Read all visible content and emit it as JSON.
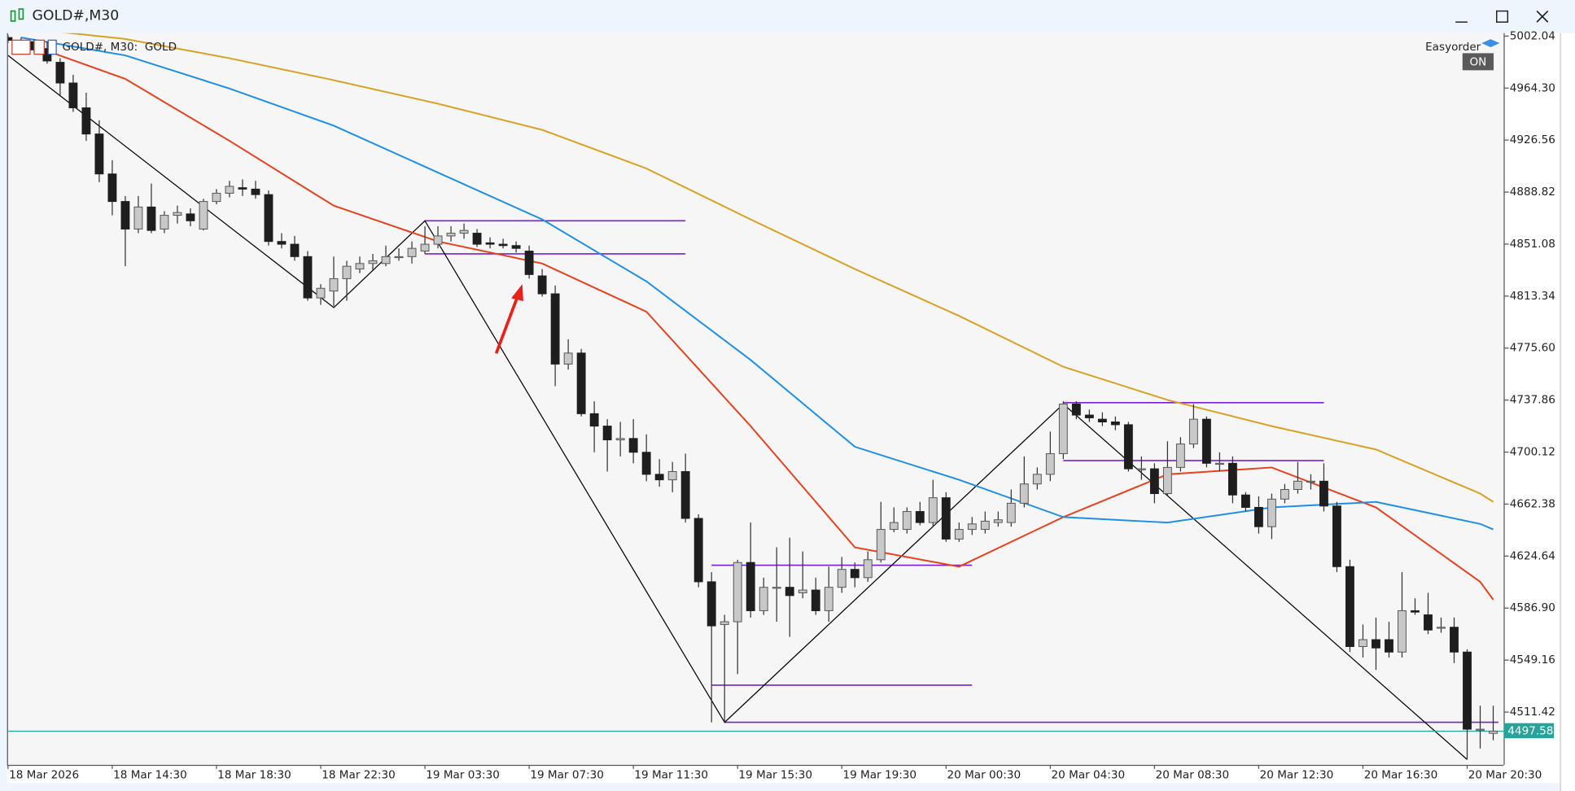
{
  "window": {
    "title": "GOLD#,M30"
  },
  "expert": {
    "name": "Easyorder",
    "state": "ON"
  },
  "chart_data": {
    "type": "candlestick",
    "title": "GOLD#, M30:  GOLD",
    "categories": [
      "18 Mar 2026",
      null,
      null,
      null,
      null,
      null,
      null,
      null,
      "18 Mar 14:30",
      null,
      null,
      null,
      null,
      null,
      null,
      null,
      "18 Mar 18:30",
      null,
      null,
      null,
      null,
      null,
      null,
      null,
      "18 Mar 22:30",
      null,
      null,
      null,
      null,
      null,
      null,
      null,
      "19 Mar 03:30",
      null,
      null,
      null,
      null,
      null,
      null,
      null,
      "19 Mar 07:30",
      null,
      null,
      null,
      null,
      null,
      null,
      null,
      "19 Mar 11:30",
      null,
      null,
      null,
      null,
      null,
      null,
      null,
      "19 Mar 15:30",
      null,
      null,
      null,
      null,
      null,
      null,
      null,
      "19 Mar 19:30",
      null,
      null,
      null,
      null,
      null,
      null,
      null,
      "20 Mar 00:30",
      null,
      null,
      null,
      null,
      null,
      null,
      null,
      "20 Mar 04:30",
      null,
      null,
      null,
      null,
      null,
      null,
      null,
      "20 Mar 08:30",
      null,
      null,
      null,
      null,
      null,
      null,
      null,
      "20 Mar 12:30",
      null,
      null,
      null,
      null,
      null,
      null,
      null,
      "20 Mar 16:30",
      null,
      null,
      null,
      null,
      null,
      null,
      null,
      "20 Mar 20:30",
      null,
      null
    ],
    "ohlc": [
      [
        5001,
        5003,
        4997,
        4999
      ],
      [
        4999,
        5001,
        4993,
        4995
      ],
      [
        4998,
        5000,
        4990,
        4992
      ],
      [
        4993,
        4998,
        4982,
        4984
      ],
      [
        4983,
        4986,
        4959,
        4968
      ],
      [
        4968,
        4974,
        4947,
        4950
      ],
      [
        4950,
        4961,
        4926,
        4931
      ],
      [
        4931,
        4941,
        4896,
        4902
      ],
      [
        4902,
        4912,
        4872,
        4882
      ],
      [
        4882,
        4886,
        4835,
        4862
      ],
      [
        4862,
        4886,
        4859,
        4878
      ],
      [
        4878,
        4895,
        4859,
        4861
      ],
      [
        4862,
        4875,
        4859,
        4872
      ],
      [
        4872,
        4879,
        4866,
        4874
      ],
      [
        4873,
        4877,
        4864,
        4868
      ],
      [
        4862,
        4884,
        4861,
        4882
      ],
      [
        4882,
        4891,
        4880,
        4888
      ],
      [
        4888,
        4897,
        4885,
        4893
      ],
      [
        4892,
        4898,
        4886,
        4891
      ],
      [
        4891,
        4897,
        4884,
        4887
      ],
      [
        4887,
        4890,
        4850,
        4853
      ],
      [
        4853,
        4859,
        4848,
        4851
      ],
      [
        4851,
        4857,
        4839,
        4842
      ],
      [
        4842,
        4846,
        4810,
        4812
      ],
      [
        4812,
        4822,
        4807,
        4819
      ],
      [
        4817,
        4842,
        4806,
        4826
      ],
      [
        4826,
        4839,
        4810,
        4835
      ],
      [
        4833,
        4842,
        4830,
        4837
      ],
      [
        4837,
        4844,
        4832,
        4839
      ],
      [
        4837,
        4850,
        4835,
        4842
      ],
      [
        4842,
        4848,
        4839,
        4842
      ],
      [
        4842,
        4853,
        4837,
        4848
      ],
      [
        4846,
        4864,
        4844,
        4851
      ],
      [
        4851,
        4864,
        4848,
        4857
      ],
      [
        4857,
        4864,
        4853,
        4859
      ],
      [
        4859,
        4866,
        4855,
        4861
      ],
      [
        4859,
        4862,
        4849,
        4851
      ],
      [
        4852,
        4856,
        4848,
        4851
      ],
      [
        4851,
        4855,
        4848,
        4850
      ],
      [
        4850,
        4853,
        4845,
        4848
      ],
      [
        4846,
        4850,
        4826,
        4829
      ],
      [
        4828,
        4833,
        4813,
        4815
      ],
      [
        4815,
        4821,
        4748,
        4764
      ],
      [
        4764,
        4782,
        4760,
        4772
      ],
      [
        4772,
        4775,
        4726,
        4728
      ],
      [
        4728,
        4737,
        4700,
        4719
      ],
      [
        4719,
        4724,
        4686,
        4709
      ],
      [
        4709,
        4722,
        4697,
        4710
      ],
      [
        4710,
        4724,
        4692,
        4700
      ],
      [
        4700,
        4713,
        4679,
        4684
      ],
      [
        4684,
        4695,
        4675,
        4680
      ],
      [
        4680,
        4693,
        4671,
        4686
      ],
      [
        4686,
        4699,
        4649,
        4652
      ],
      [
        4652,
        4655,
        4602,
        4606
      ],
      [
        4606,
        4613,
        4504,
        4574
      ],
      [
        4575,
        4582,
        4504,
        4577
      ],
      [
        4577,
        4622,
        4539,
        4620
      ],
      [
        4620,
        4649,
        4580,
        4585
      ],
      [
        4585,
        4609,
        4582,
        4602
      ],
      [
        4602,
        4631,
        4577,
        4602
      ],
      [
        4602,
        4638,
        4566,
        4596
      ],
      [
        4598,
        4628,
        4594,
        4600
      ],
      [
        4600,
        4609,
        4582,
        4585
      ],
      [
        4585,
        4617,
        4577,
        4602
      ],
      [
        4602,
        4624,
        4598,
        4615
      ],
      [
        4615,
        4620,
        4602,
        4609
      ],
      [
        4609,
        4628,
        4606,
        4622
      ],
      [
        4622,
        4664,
        4620,
        4644
      ],
      [
        4644,
        4660,
        4642,
        4649
      ],
      [
        4644,
        4660,
        4641,
        4657
      ],
      [
        4657,
        4664,
        4647,
        4649
      ],
      [
        4649,
        4680,
        4646,
        4667
      ],
      [
        4667,
        4671,
        4635,
        4637
      ],
      [
        4637,
        4649,
        4635,
        4644
      ],
      [
        4644,
        4653,
        4640,
        4648
      ],
      [
        4644,
        4657,
        4641,
        4650
      ],
      [
        4649,
        4657,
        4646,
        4651
      ],
      [
        4649,
        4673,
        4646,
        4663
      ],
      [
        4663,
        4697,
        4660,
        4677
      ],
      [
        4677,
        4689,
        4673,
        4684
      ],
      [
        4684,
        4715,
        4679,
        4699
      ],
      [
        4699,
        4737,
        4695,
        4735
      ],
      [
        4735,
        4737,
        4724,
        4727
      ],
      [
        4727,
        4731,
        4722,
        4725
      ],
      [
        4724,
        4729,
        4719,
        4722
      ],
      [
        4722,
        4726,
        4716,
        4720
      ],
      [
        4720,
        4722,
        4686,
        4688
      ],
      [
        4688,
        4697,
        4680,
        4688
      ],
      [
        4688,
        4692,
        4663,
        4670
      ],
      [
        4670,
        4708,
        4668,
        4689
      ],
      [
        4689,
        4711,
        4686,
        4706
      ],
      [
        4706,
        4735,
        4703,
        4724
      ],
      [
        4724,
        4726,
        4689,
        4692
      ],
      [
        4692,
        4700,
        4686,
        4692
      ],
      [
        4692,
        4697,
        4663,
        4669
      ],
      [
        4669,
        4671,
        4657,
        4660
      ],
      [
        4660,
        4668,
        4641,
        4646
      ],
      [
        4646,
        4670,
        4637,
        4666
      ],
      [
        4666,
        4677,
        4663,
        4673
      ],
      [
        4673,
        4693,
        4670,
        4679
      ],
      [
        4679,
        4684,
        4673,
        4679
      ],
      [
        4679,
        4692,
        4657,
        4661
      ],
      [
        4661,
        4664,
        4613,
        4617
      ],
      [
        4617,
        4622,
        4555,
        4559
      ],
      [
        4559,
        4575,
        4551,
        4564
      ],
      [
        4564,
        4580,
        4542,
        4558
      ],
      [
        4564,
        4577,
        4551,
        4555
      ],
      [
        4555,
        4613,
        4551,
        4585
      ],
      [
        4585,
        4594,
        4582,
        4584
      ],
      [
        4582,
        4598,
        4568,
        4571
      ],
      [
        4573,
        4580,
        4569,
        4573
      ],
      [
        4573,
        4580,
        4547,
        4555
      ],
      [
        4555,
        4557,
        4477,
        4499
      ],
      [
        4499,
        4516,
        4485,
        4499
      ],
      [
        4496,
        4516,
        4491,
        4497.58
      ]
    ],
    "up_color": "#c8c8c8",
    "down_color": "#1e1e1e",
    "indicators": [
      {
        "color": "#e8401c",
        "x": [
          1,
          9,
          17,
          25,
          33,
          41,
          49,
          57,
          65,
          73,
          81,
          89,
          97,
          105,
          113,
          114
        ],
        "values": [
          4998,
          4971,
          4926,
          4879,
          4853,
          4837,
          4802,
          4719,
          4631,
          4617,
          4653,
          4684,
          4689,
          4660,
          4606,
          4593
        ]
      },
      {
        "color": "#1e8fe8",
        "x": [
          1,
          9,
          17,
          25,
          33,
          41,
          49,
          57,
          65,
          73,
          81,
          89,
          97,
          105,
          113,
          114
        ],
        "values": [
          5001,
          4988,
          4964,
          4937,
          4903,
          4869,
          4824,
          4767,
          4704,
          4680,
          4653,
          4649,
          4660,
          4664,
          4648,
          4644
        ]
      },
      {
        "color": "#d9a021",
        "x": [
          1,
          9,
          17,
          25,
          33,
          41,
          49,
          57,
          65,
          73,
          81,
          89,
          97,
          105,
          113,
          114
        ],
        "values": [
          5008,
          5000,
          4986,
          4970,
          4953,
          4934,
          4906,
          4869,
          4833,
          4799,
          4762,
          4738,
          4719,
          4702,
          4670,
          4664
        ]
      }
    ],
    "zigzag": {
      "color": "#000000",
      "x": [
        0,
        25,
        32,
        55,
        81,
        112
      ],
      "values": [
        4988,
        4805,
        4868,
        4504,
        4735,
        4477
      ]
    },
    "levels_color": "#7a1fd6",
    "levels": [
      {
        "x": [
          32,
          52
        ],
        "value": 4868
      },
      {
        "x": [
          32,
          52
        ],
        "value": 4844
      },
      {
        "x": [
          54,
          74
        ],
        "value": 4618
      },
      {
        "x": [
          54,
          74
        ],
        "value": 4531
      },
      {
        "x": [
          55,
          114.4
        ],
        "value": 4504
      },
      {
        "x": [
          81,
          101
        ],
        "value": 4736
      },
      {
        "x": [
          81,
          101
        ],
        "value": 4694
      }
    ],
    "last_price": 4497.58,
    "last_price_color": "#27a39a",
    "ylim": [
      4473.1,
      5004.2
    ],
    "yticks": [
      5002.04,
      {
        "value": 4964.3,
        "label": "4964.30"
      },
      4926.56,
      4888.82,
      4851.08,
      4813.34,
      {
        "value": 4775.6,
        "label": "4775.60"
      },
      4737.86,
      4700.12,
      4662.38,
      4624.64,
      {
        "value": 4586.9,
        "label": "4586.90"
      },
      4549.16,
      4511.42
    ]
  }
}
